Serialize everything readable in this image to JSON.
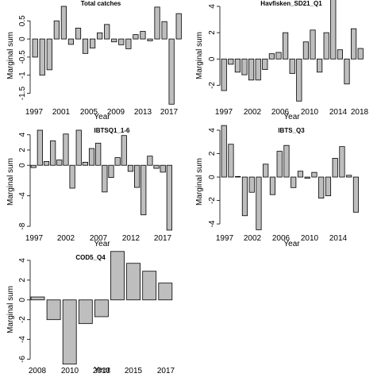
{
  "chart_data": [
    {
      "type": "bar",
      "title": "Total catches",
      "xlabel": "Year",
      "ylabel": "Marginal sum",
      "x": [
        1997,
        1998,
        1999,
        2000,
        2001,
        2002,
        2003,
        2004,
        2005,
        2006,
        2007,
        2008,
        2009,
        2010,
        2011,
        2012,
        2013,
        2014,
        2015,
        2016,
        2017,
        2018
      ],
      "values": [
        -0.5,
        -1.0,
        -0.85,
        0.5,
        0.9,
        -0.15,
        0.3,
        -0.4,
        -0.25,
        0.17,
        0.4,
        -0.08,
        -0.16,
        -0.27,
        0.12,
        0.21,
        -0.05,
        0.88,
        0.48,
        -1.8,
        0.7,
        0
      ],
      "ylim": [
        -1.75,
        0.9
      ],
      "yticks": [
        -1.5,
        -1.0,
        -0.5,
        0,
        0.5
      ],
      "ytick_labels": [
        "-1.5",
        "-1",
        "-0.5",
        "0",
        "0.5"
      ],
      "xticks": [
        "1997",
        "2001",
        "2005",
        "2009",
        "2013",
        "2017"
      ],
      "grid": false
    },
    {
      "type": "bar",
      "title": "Havfisken_SD21_Q1",
      "xlabel": "Year",
      "ylabel": "Marginal sum",
      "x": [
        1997,
        1998,
        1999,
        2000,
        2001,
        2002,
        2003,
        2004,
        2005,
        2006,
        2007,
        2008,
        2009,
        2010,
        2011,
        2012,
        2013,
        2014,
        2015,
        2016,
        2017,
        2018
      ],
      "values": [
        -2.4,
        -0.4,
        -1.0,
        -1.2,
        -1.6,
        -1.6,
        -0.8,
        0.4,
        0.5,
        2.0,
        -1.1,
        -3.2,
        1.3,
        2.2,
        -1.0,
        2.0,
        4.9,
        0.7,
        -1.9,
        2.3,
        0.8,
        0
      ],
      "ylim": [
        -3.3,
        4.0
      ],
      "yticks": [
        -2,
        0,
        2,
        4
      ],
      "ytick_labels": [
        "-2",
        "0",
        "2",
        "4"
      ],
      "xticks": [
        "1997",
        "2002",
        "2006",
        "2010",
        "2014",
        "2018"
      ],
      "grid": false
    },
    {
      "type": "bar",
      "title": "IBTSQ1_1-6",
      "xlabel": "Year",
      "ylabel": "Marginal sum",
      "x": [
        1997,
        1998,
        1999,
        2000,
        2001,
        2002,
        2003,
        2004,
        2005,
        2006,
        2007,
        2008,
        2009,
        2010,
        2011,
        2012,
        2013,
        2014,
        2015,
        2016,
        2017,
        2018
      ],
      "values": [
        -0.3,
        4.6,
        0.5,
        3.2,
        0.7,
        4.1,
        -3.0,
        4.6,
        0.4,
        2.2,
        2.9,
        -3.5,
        -1.6,
        1.0,
        3.9,
        -0.8,
        -2.9,
        -6.5,
        1.2,
        -0.4,
        -0.9,
        -8.5
      ],
      "ylim": [
        -8.3,
        4.6
      ],
      "yticks": [
        -8,
        -4,
        0,
        2,
        4
      ],
      "ytick_labels": [
        "-8",
        "-4",
        "0",
        "2",
        "4"
      ],
      "xticks": [
        "1997",
        "2002",
        "2007",
        "2012",
        "2017"
      ],
      "grid": false
    },
    {
      "type": "bar",
      "title": "IBTS_Q3",
      "xlabel": "Year",
      "ylabel": "Marginal sum",
      "x": [
        1997,
        1998,
        1999,
        2000,
        2001,
        2002,
        2003,
        2004,
        2005,
        2006,
        2007,
        2008,
        2009,
        2010,
        2011,
        2012,
        2013,
        2014,
        2015,
        2016,
        2017,
        2018
      ],
      "values": [
        4.4,
        2.8,
        0.05,
        -3.3,
        -1.3,
        -4.5,
        1.1,
        -1.5,
        2.2,
        2.7,
        -0.9,
        0.5,
        -0.1,
        0.4,
        -1.8,
        -1.6,
        1.6,
        2.6,
        0.15,
        -3.0,
        0,
        0
      ],
      "ylim": [
        -4.4,
        4.0
      ],
      "yticks": [
        -4,
        -2,
        0,
        2,
        4
      ],
      "ytick_labels": [
        "-4",
        "-2",
        "0",
        "2",
        "4"
      ],
      "xticks": [
        "1997",
        "2002",
        "2006",
        "2010",
        "2014"
      ],
      "grid": false
    },
    {
      "type": "bar",
      "title": "COD5_Q4",
      "xlabel": "Year",
      "ylabel": "Marginal sum",
      "x": [
        2008,
        2009,
        2010,
        2011,
        2012,
        2013,
        2014,
        2015,
        2016,
        2017
      ],
      "values": [
        0.3,
        -2.0,
        -6.5,
        -2.4,
        -1.7,
        4.9,
        3.7,
        2.9,
        1.7,
        0
      ],
      "ylim": [
        -6.2,
        4.0
      ],
      "yticks": [
        -6,
        -4,
        -2,
        0,
        2,
        4
      ],
      "ytick_labels": [
        "-6",
        "-4",
        "-2",
        "0",
        "2",
        "4"
      ],
      "xticks": [
        "2008",
        "2010",
        "2013",
        "2015",
        "2017"
      ],
      "grid": false
    }
  ]
}
